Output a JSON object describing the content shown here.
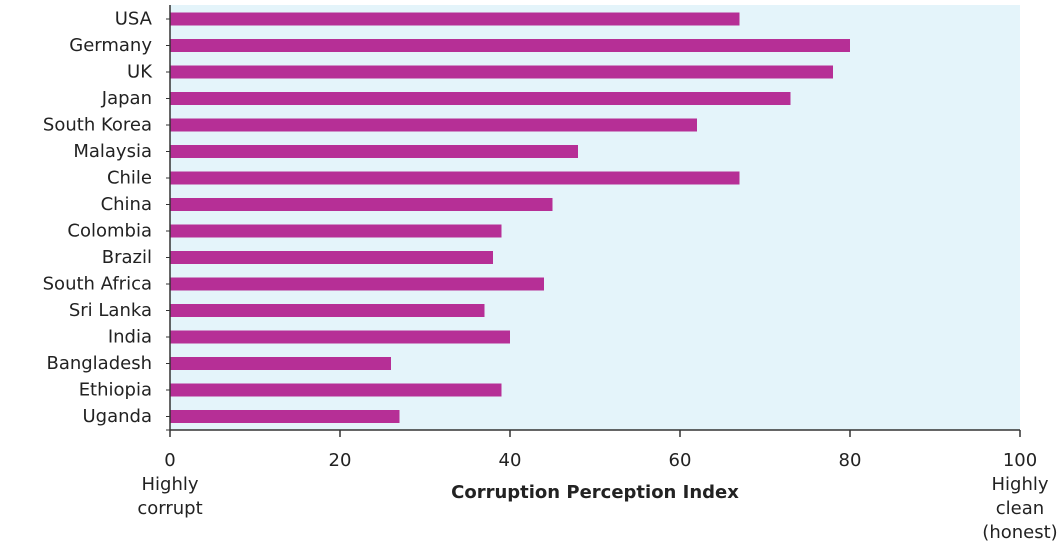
{
  "chart_data": {
    "type": "bar",
    "orientation": "horizontal",
    "categories": [
      "USA",
      "Germany",
      "UK",
      "Japan",
      "South Korea",
      "Malaysia",
      "Chile",
      "China",
      "Colombia",
      "Brazil",
      "South Africa",
      "Sri Lanka",
      "India",
      "Bangladesh",
      "Ethiopia",
      "Uganda"
    ],
    "values": [
      67,
      80,
      78,
      73,
      62,
      48,
      67,
      45,
      39,
      38,
      44,
      37,
      40,
      26,
      39,
      27
    ],
    "xlabel": "Corruption Perception Index",
    "xlim": [
      0,
      100
    ],
    "xticks": [
      "0",
      "20",
      "40",
      "60",
      "80",
      "100"
    ],
    "low_end_label": [
      "Highly",
      "corrupt"
    ],
    "high_end_label": [
      "Highly",
      "clean",
      "(honest)"
    ],
    "grid": false,
    "legend": "none",
    "colors": {
      "bar": "#b62f96",
      "plot_background": "#e4f4fa",
      "axis": "#333333"
    }
  }
}
